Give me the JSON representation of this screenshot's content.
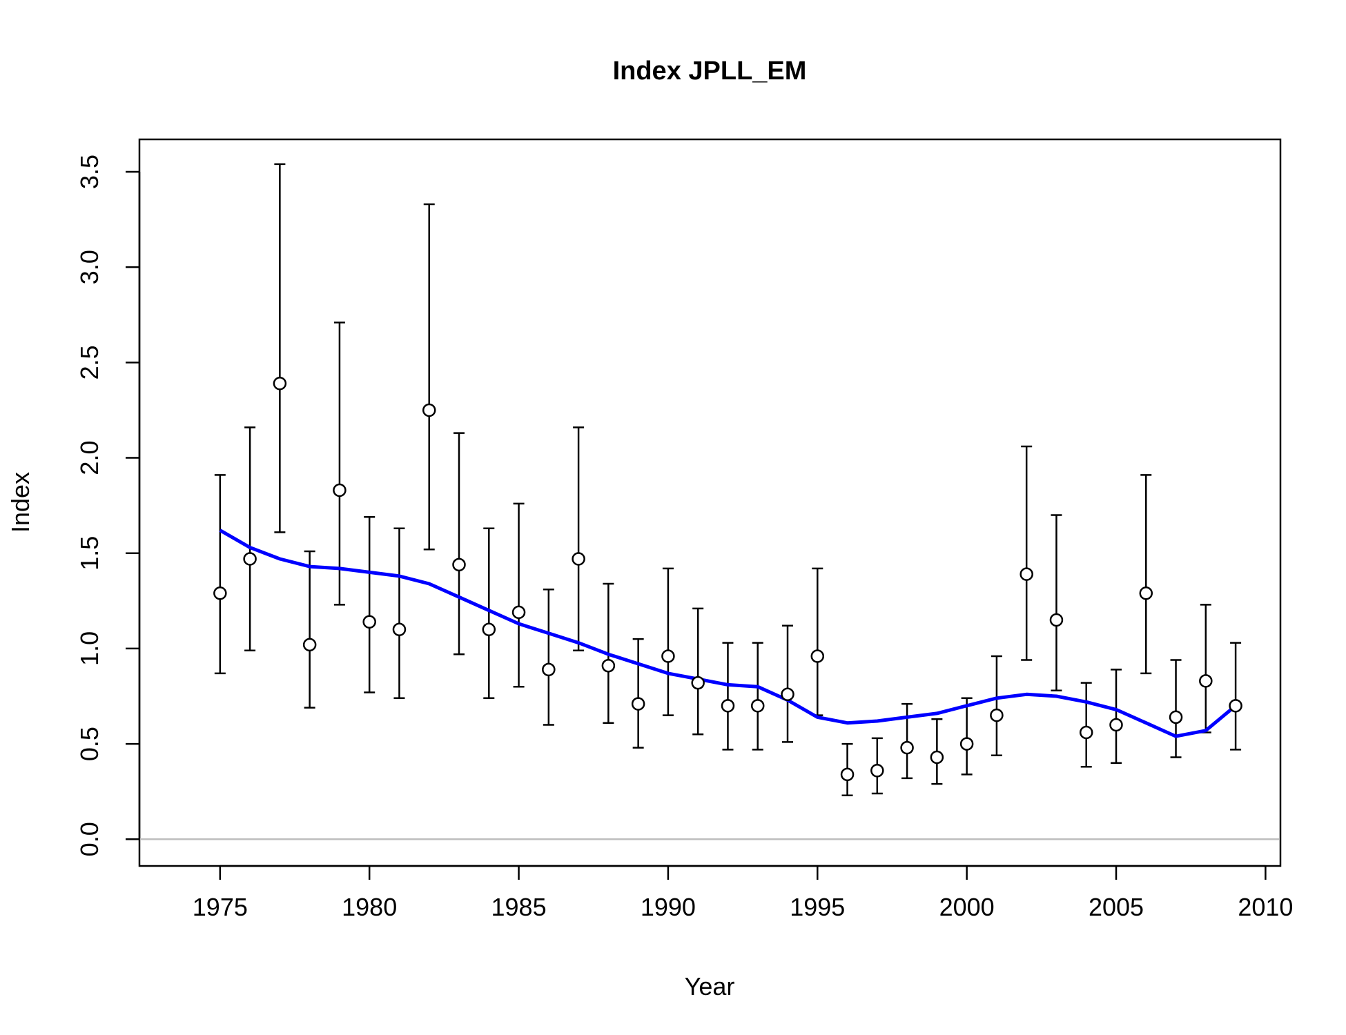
{
  "chart_data": {
    "type": "scatter",
    "title": "Index JPLL_EM",
    "xlabel": "Year",
    "ylabel": "Index",
    "xlim": [
      1972.3,
      2010.5
    ],
    "ylim": [
      -0.14,
      3.67
    ],
    "x_ticks": [
      1975,
      1980,
      1985,
      1990,
      1995,
      2000,
      2005,
      2010
    ],
    "x_tick_labels": [
      "1975",
      "1980",
      "1985",
      "1990",
      "1995",
      "2000",
      "2005",
      "2010"
    ],
    "y_ticks": [
      0.0,
      0.5,
      1.0,
      1.5,
      2.0,
      2.5,
      3.0,
      3.5
    ],
    "y_tick_labels": [
      "0.0",
      "0.5",
      "1.0",
      "1.5",
      "2.0",
      "2.5",
      "3.0",
      "3.5"
    ],
    "grid": false,
    "reference_line": {
      "y": 0,
      "color": "#bebebe"
    },
    "colors": {
      "points": "#000000",
      "fit": "#0000ff",
      "errorbars": "#000000"
    },
    "series": [
      {
        "kind": "observed",
        "marker": "open-circle",
        "x": [
          1975,
          1976,
          1977,
          1978,
          1979,
          1980,
          1981,
          1982,
          1983,
          1984,
          1985,
          1986,
          1987,
          1988,
          1989,
          1990,
          1991,
          1992,
          1993,
          1994,
          1995,
          1996,
          1997,
          1998,
          1999,
          2000,
          2001,
          2002,
          2003,
          2004,
          2005,
          2006,
          2007,
          2008,
          2009
        ],
        "y": [
          1.29,
          1.47,
          2.39,
          1.02,
          1.83,
          1.14,
          1.1,
          2.25,
          1.44,
          1.1,
          1.19,
          0.89,
          1.47,
          0.91,
          0.71,
          0.96,
          0.82,
          0.7,
          0.7,
          0.76,
          0.96,
          0.34,
          0.36,
          0.48,
          0.43,
          0.5,
          0.65,
          1.39,
          1.15,
          0.56,
          0.6,
          1.29,
          0.64,
          0.83,
          0.7
        ],
        "lower": [
          0.87,
          0.99,
          1.61,
          0.69,
          1.23,
          0.77,
          0.74,
          1.52,
          0.97,
          0.74,
          0.8,
          0.6,
          0.99,
          0.61,
          0.48,
          0.65,
          0.55,
          0.47,
          0.47,
          0.51,
          0.65,
          0.23,
          0.24,
          0.32,
          0.29,
          0.34,
          0.44,
          0.94,
          0.78,
          0.38,
          0.4,
          0.87,
          0.43,
          0.56,
          0.47
        ],
        "upper": [
          1.91,
          2.16,
          3.54,
          1.51,
          2.71,
          1.69,
          1.63,
          3.33,
          2.13,
          1.63,
          1.76,
          1.31,
          2.16,
          1.34,
          1.05,
          1.42,
          1.21,
          1.03,
          1.03,
          1.12,
          1.42,
          0.5,
          0.53,
          0.71,
          0.63,
          0.74,
          0.96,
          2.06,
          1.7,
          0.82,
          0.89,
          1.91,
          0.94,
          1.23,
          1.03
        ]
      },
      {
        "kind": "fitted",
        "style": "line",
        "x": [
          1975,
          1976,
          1977,
          1978,
          1979,
          1980,
          1981,
          1982,
          1983,
          1984,
          1985,
          1986,
          1987,
          1988,
          1989,
          1990,
          1991,
          1992,
          1993,
          1994,
          1995,
          1996,
          1997,
          1998,
          1999,
          2000,
          2001,
          2002,
          2003,
          2004,
          2005,
          2006,
          2007,
          2008,
          2009
        ],
        "y": [
          1.62,
          1.53,
          1.47,
          1.43,
          1.42,
          1.4,
          1.38,
          1.34,
          1.27,
          1.2,
          1.13,
          1.08,
          1.03,
          0.97,
          0.92,
          0.87,
          0.84,
          0.81,
          0.8,
          0.73,
          0.64,
          0.61,
          0.62,
          0.64,
          0.66,
          0.7,
          0.74,
          0.76,
          0.75,
          0.72,
          0.68,
          0.61,
          0.54,
          0.57,
          0.7
        ]
      }
    ]
  }
}
